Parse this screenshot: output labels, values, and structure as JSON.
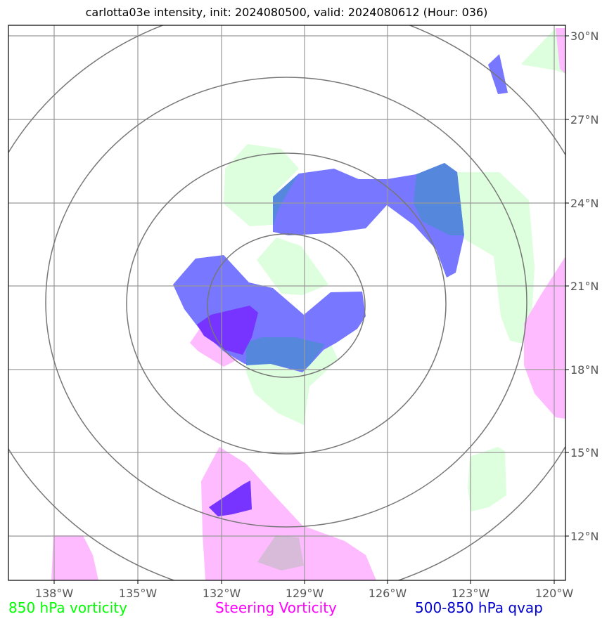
{
  "title": "carlotta03e intensity, init: 2024080500, valid: 2024080612 (Hour: 036)",
  "axes": {
    "lon_ticks": [
      "138°W",
      "135°W",
      "132°W",
      "129°W",
      "126°W",
      "123°W",
      "120°W"
    ],
    "lat_ticks": [
      "30°N",
      "27°N",
      "24°N",
      "21°N",
      "18°N",
      "15°N",
      "12°N"
    ]
  },
  "legend": [
    {
      "label": "850 hPa vorticity",
      "color": "#00ff00"
    },
    {
      "label": "Steering Vorticity",
      "color": "#ff00ff"
    },
    {
      "label": "500-850 hPa qvap",
      "color": "#0000cc"
    }
  ],
  "colors": {
    "vorticity_850_fill": "#ddffdd",
    "steering_fill": "#ffbbff",
    "qvap_fill": "#7777ff",
    "overlap_fill": "#5588dd",
    "overlap_purple": "#7733ff",
    "range_rings": "#777777",
    "grid": "#999999"
  }
}
